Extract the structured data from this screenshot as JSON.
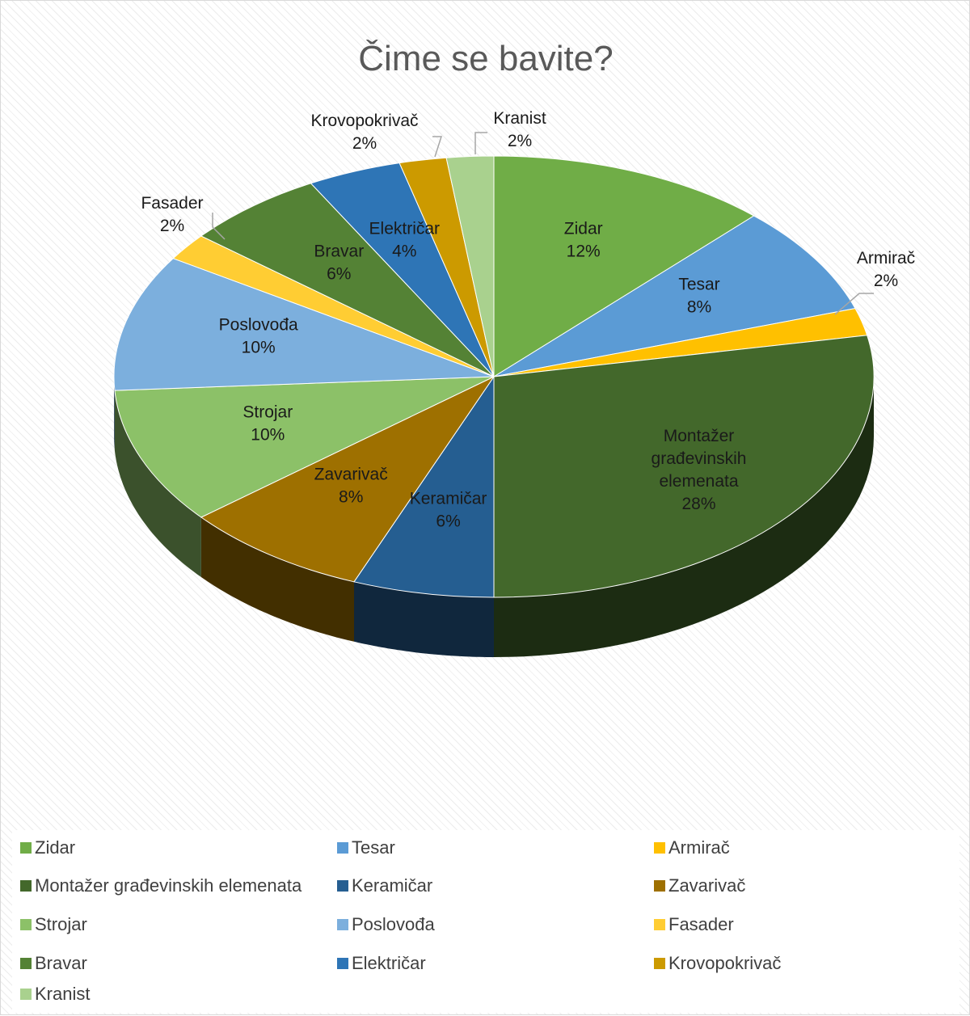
{
  "chart_data": {
    "type": "pie",
    "title": "Čime se bavite?",
    "categories": [
      "Zidar",
      "Tesar",
      "Armirač",
      "Montažer građevinskih elemenata",
      "Keramičar",
      "Zavarivač",
      "Strojar",
      "Poslovođa",
      "Fasader",
      "Bravar",
      "Električar",
      "Krovopokrivač",
      "Kranist"
    ],
    "values": [
      12,
      8,
      2,
      28,
      6,
      8,
      10,
      10,
      2,
      6,
      4,
      2,
      2
    ],
    "value_labels": [
      "12%",
      "8%",
      "2%",
      "28%",
      "6%",
      "8%",
      "10%",
      "10%",
      "2%",
      "6%",
      "4%",
      "2%",
      "2%"
    ],
    "colors": [
      "#70ad47",
      "#5b9bd5",
      "#ffc000",
      "#43682b",
      "#255e91",
      "#9e7000",
      "#8cc168",
      "#7cafdd",
      "#ffcd33",
      "#548235",
      "#2e75b6",
      "#cc9a00",
      "#a9d18e"
    ],
    "legend_position": "bottom",
    "style": "3d-pie"
  }
}
